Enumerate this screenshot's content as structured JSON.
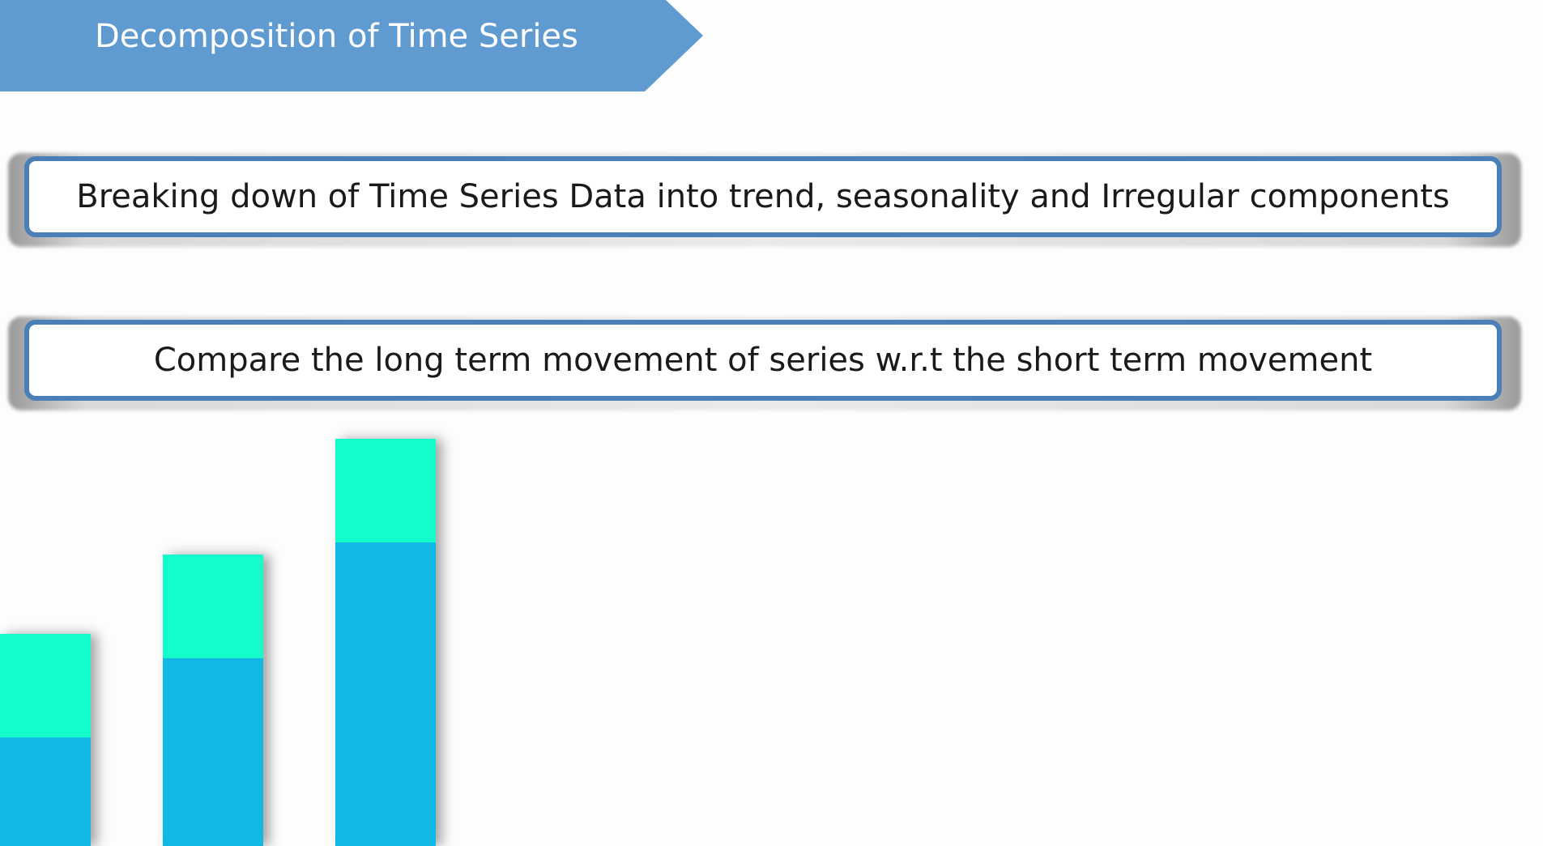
{
  "slide": {
    "title": "Decomposition of Time Series",
    "points": [
      "Breaking down of Time Series Data into trend, seasonality and Irregular components",
      "Compare the long term movement of series w.r.t the short term movement"
    ]
  },
  "colors": {
    "banner": "#5f9ad0",
    "box_border": "#4a7fb7",
    "bar_top": "#14fbcc",
    "bar_bottom": "#10b8e3"
  }
}
